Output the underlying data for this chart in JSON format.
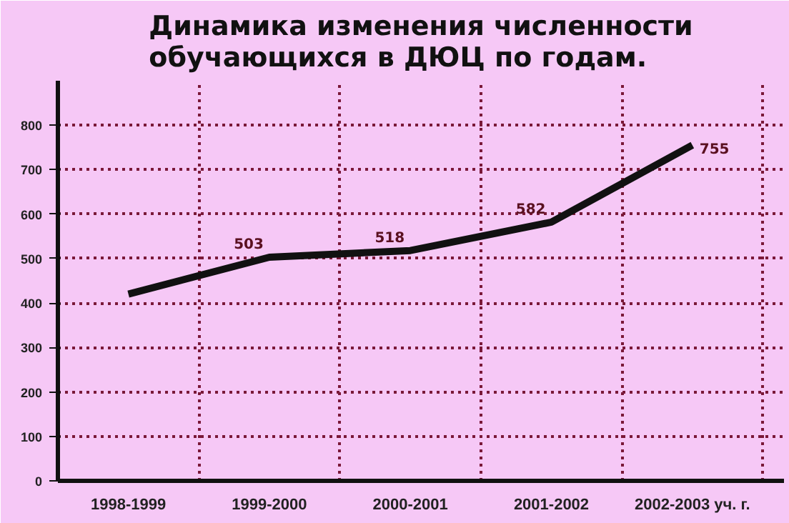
{
  "chart_data": {
    "type": "line",
    "title": "Динамика изменения численности\nобучающихся в ДЮЦ по годам.",
    "categories": [
      "1998-1999",
      "1999-2000",
      "2000-2001",
      "2001-2002",
      "2002-2003 уч. г."
    ],
    "series": [
      {
        "color": "#111111",
        "values": [
          420,
          503,
          518,
          582,
          755
        ],
        "value_labels": [
          null,
          "503",
          "518",
          "582",
          "755"
        ]
      }
    ],
    "ylim": [
      0,
      900
    ],
    "yticks": [
      0,
      100,
      200,
      300,
      400,
      500,
      600,
      700,
      800
    ],
    "grid": true,
    "marker": "none",
    "line_style": "solid"
  }
}
